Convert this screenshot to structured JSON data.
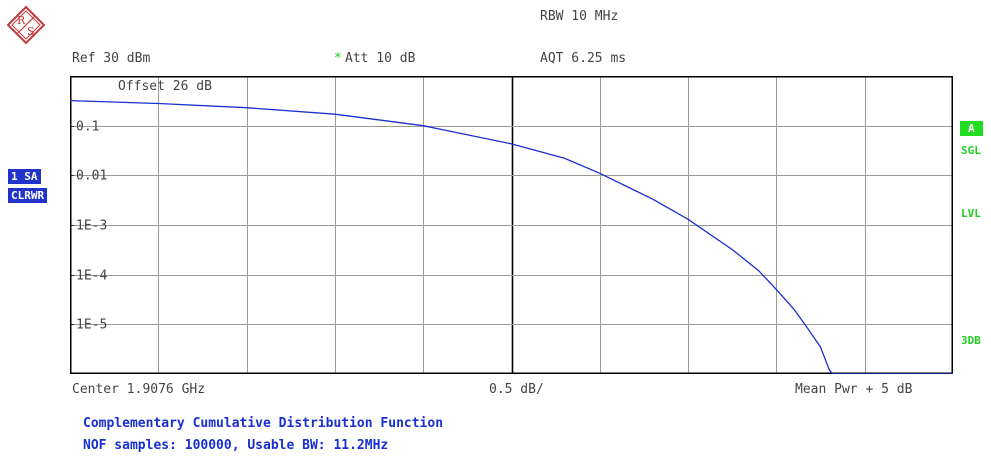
{
  "header": {
    "rbw": "RBW 10 MHz",
    "ref": "Ref  30 dBm",
    "att_star": "*",
    "att": "Att  10 dB",
    "aqt": "AQT 6.25 ms"
  },
  "side": {
    "trace_badge": "1 SA",
    "mode_badge": "CLRWR",
    "a_badge": "A",
    "sgl": "SGL",
    "lvl": "LVL",
    "db3": "3DB"
  },
  "bottom": {
    "center": "Center 1.9076 GHz",
    "scale": "0.5 dB/",
    "mean": "Mean Pwr + 5 dB"
  },
  "footer": {
    "line1": "Complementary Cumulative Distribution Function",
    "line2": "NOF samples: 100000, Usable BW:  11.2MHz"
  },
  "colors": {
    "trace": "#1a2fd0",
    "badge_blue": "#2233cc",
    "badge_green": "#22dd22",
    "grid": "#9a9a9a",
    "logo": "#c23b3b"
  },
  "chart_data": {
    "type": "line",
    "title": "Complementary Cumulative Distribution Function",
    "xlabel": "",
    "ylabel": "",
    "annotation": "Offset  26 dB",
    "x_divisions": 10,
    "x_div_db": 0.5,
    "xlim": [
      0,
      5
    ],
    "yscale": "log",
    "ylim": [
      1e-06,
      1
    ],
    "y_ticks": [
      {
        "value": 0.1,
        "label": "0.1"
      },
      {
        "value": 0.01,
        "label": "0.01"
      },
      {
        "value": 0.001,
        "label": "1E-3"
      },
      {
        "value": 0.0001,
        "label": "1E-4"
      },
      {
        "value": 1e-05,
        "label": "1E-5"
      }
    ],
    "grid": true,
    "series": [
      {
        "x": [
          0.0,
          0.5,
          1.0,
          1.5,
          2.0,
          2.5,
          2.8,
          3.0,
          3.3,
          3.5,
          3.75,
          3.9,
          4.0,
          4.1,
          4.18,
          4.25,
          4.3,
          4.32,
          5.0
        ],
        "values": [
          0.32,
          0.28,
          0.23,
          0.17,
          0.1,
          0.043,
          0.022,
          0.011,
          0.0033,
          0.0013,
          0.00032,
          0.00012,
          5e-05,
          2e-05,
          8e-06,
          3.5e-06,
          1.2e-06,
          1e-06,
          1e-06
        ]
      }
    ]
  }
}
